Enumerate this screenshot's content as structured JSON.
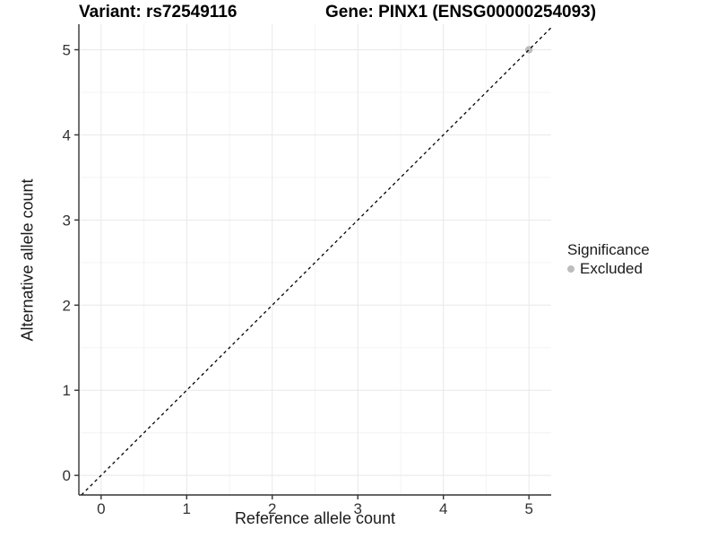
{
  "chart_data": {
    "type": "scatter",
    "variant_title": "Variant: rs72549116",
    "gene_title": "Gene: PINX1 (ENSG00000254093)",
    "xlabel": "Reference allele count",
    "ylabel": "Alternative allele count",
    "xlim": [
      -0.26,
      5.26
    ],
    "ylim": [
      -0.23,
      5.3
    ],
    "x_ticks": [
      0,
      1,
      2,
      3,
      4,
      5
    ],
    "x_tick_labels": [
      "0",
      "1",
      "2",
      "3",
      "4",
      "5"
    ],
    "y_ticks": [
      0,
      1,
      2,
      3,
      4,
      5
    ],
    "y_tick_labels": [
      "0",
      "1",
      "2",
      "3",
      "4",
      "5"
    ],
    "grid": "major+minor",
    "legend_position": "right",
    "series": [
      {
        "name": "Excluded",
        "color": "#bdbdbd",
        "points": [
          [
            5,
            5
          ]
        ]
      }
    ],
    "reference_line": {
      "kind": "identity y=x",
      "style": "dashed",
      "color": "#000000"
    },
    "style": {
      "panel_bg": "#ffffff",
      "grid_major": "#e8e8e8",
      "grid_minor": "#f4f4f4",
      "axis_line": "#333333",
      "tick_color": "#333333",
      "tick_label_color": "#333333"
    }
  },
  "legend": {
    "title": "Significance",
    "items": [
      {
        "label": "Excluded",
        "color": "#bdbdbd"
      }
    ]
  }
}
